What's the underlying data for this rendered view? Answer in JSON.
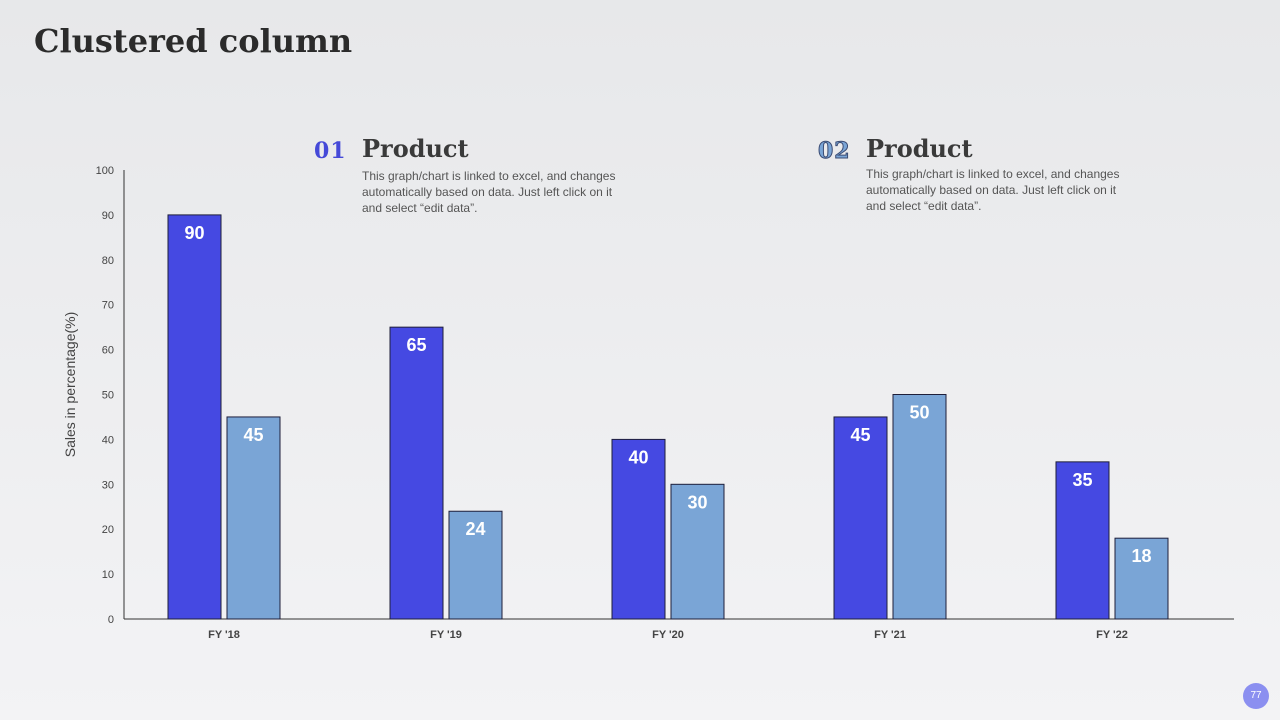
{
  "slide": {
    "title": "Clustered column",
    "page_number": "77"
  },
  "legend": [
    {
      "num": "01",
      "heading": "Product",
      "desc": "This graph/chart is linked to excel, and changes automatically based on data. Just left click on it and select “edit data”."
    },
    {
      "num": "02",
      "heading": "Product",
      "desc": "This graph/chart is linked to excel, and changes automatically based on data. Just left click on it and select “edit data”."
    }
  ],
  "colors": {
    "series1": "#4549e2",
    "series2": "#7aa5d6",
    "axis": "#333333",
    "tick_text": "#444444"
  },
  "chart_data": {
    "type": "bar",
    "title": "",
    "xlabel": "",
    "ylabel": "Sales in percentage(%)",
    "categories": [
      "FY '18",
      "FY '19",
      "FY '20",
      "FY '21",
      "FY '22"
    ],
    "series": [
      {
        "name": "Product 01",
        "values": [
          90,
          65,
          40,
          45,
          35
        ]
      },
      {
        "name": "Product 02",
        "values": [
          45,
          24,
          30,
          50,
          18
        ]
      }
    ],
    "ylim": [
      0,
      100
    ],
    "yticks": [
      0,
      10,
      20,
      30,
      40,
      50,
      60,
      70,
      80,
      90,
      100
    ],
    "ytick_labels": [
      "0",
      "10",
      "20",
      "30",
      "40",
      "50",
      "60",
      "70",
      "80",
      "90",
      "100"
    ],
    "grid": false,
    "data_labels": true
  }
}
